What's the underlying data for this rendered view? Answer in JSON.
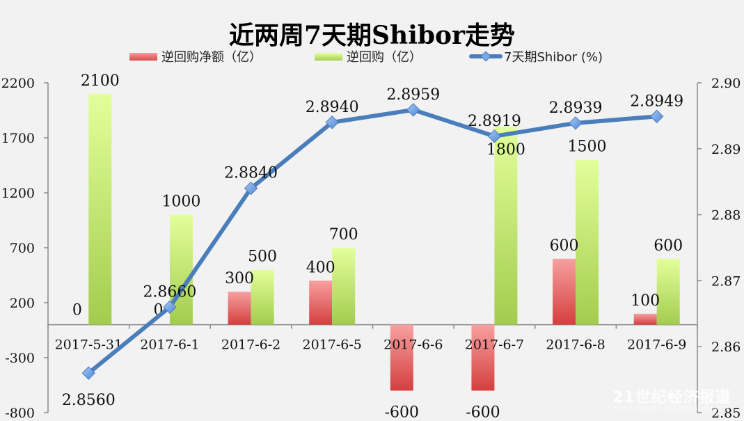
{
  "chart_data": {
    "type": "bar+line",
    "title": "近两周7天期Shibor走势",
    "categories": [
      "2017-5-31",
      "2017-6-1",
      "2017-6-2",
      "2017-6-5",
      "2017-6-6",
      "2017-6-7",
      "2017-6-8",
      "2017-6-9"
    ],
    "series": [
      {
        "name": "逆回购净额（亿）",
        "type": "bar",
        "axis": "left",
        "color": "#e05a5a",
        "values": [
          0,
          0,
          300,
          400,
          -600,
          -600,
          600,
          100
        ]
      },
      {
        "name": "逆回购（亿）",
        "type": "bar",
        "axis": "left",
        "color": "#b8de6a",
        "values": [
          2100,
          1000,
          500,
          700,
          0,
          1800,
          1500,
          600
        ]
      },
      {
        "name": "7天期Shibor (%)",
        "type": "line",
        "axis": "right",
        "color": "#4a7ebb",
        "values": [
          2.856,
          2.866,
          2.884,
          2.894,
          2.8959,
          2.8919,
          2.8939,
          2.8949
        ],
        "labels": [
          "2.8560",
          "2.8660",
          "2.8840",
          "2.8940",
          "2.8959",
          "2.8919",
          "2.8939",
          "2.8949"
        ]
      }
    ],
    "left_axis": {
      "ticks": [
        2200,
        1700,
        1200,
        700,
        200,
        -300,
        -800
      ],
      "ylim": [
        -800,
        2200
      ]
    },
    "right_axis": {
      "ticks": [
        "2.90",
        "2.89",
        "2.88",
        "2.87",
        "2.86",
        "2.85"
      ],
      "ylim": [
        2.85,
        2.9
      ]
    },
    "legend_position": "top",
    "grid": false
  },
  "legend": {
    "net": "逆回购净额（亿）",
    "repo": "逆回购（亿）",
    "shibor": "7天期Shibor (%)"
  },
  "watermark": {
    "line1": "21世纪经济报道",
    "line2": "21st CENTURY BUSINESS HERALD"
  }
}
